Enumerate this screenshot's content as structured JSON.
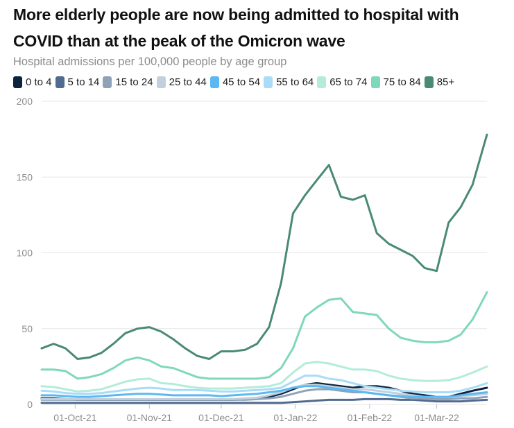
{
  "header": {
    "title": "More elderly people are now being admitted to hospital with\nCOVID than at the peak of the Omicron wave",
    "subtitle": "Hospital admissions per 100,000 people by age group"
  },
  "chart_data": {
    "type": "line",
    "title": "More elderly people are now being admitted to hospital with COVID than at the peak of the Omicron wave",
    "subtitle": "Hospital admissions per 100,000 people by age group",
    "xlabel": "",
    "ylabel": "",
    "ylim": [
      0,
      200
    ],
    "y_ticks": [
      0,
      50,
      100,
      150,
      200
    ],
    "x_range": [
      "2021-09-17",
      "2022-03-22"
    ],
    "x_ticks": [
      {
        "date": "2021-10-01",
        "label": "01-Oct-21"
      },
      {
        "date": "2021-11-01",
        "label": "01-Nov-21"
      },
      {
        "date": "2021-12-01",
        "label": "01-Dec-21"
      },
      {
        "date": "2022-01-01",
        "label": "01-Jan-22"
      },
      {
        "date": "2022-02-01",
        "label": "01-Feb-22"
      },
      {
        "date": "2022-03-01",
        "label": "01-Mar-22"
      }
    ],
    "grid": true,
    "legend_position": "top",
    "x": [
      "2021-09-17",
      "2021-09-22",
      "2021-09-27",
      "2021-10-02",
      "2021-10-07",
      "2021-10-12",
      "2021-10-17",
      "2021-10-22",
      "2021-10-27",
      "2021-11-01",
      "2021-11-06",
      "2021-11-11",
      "2021-11-16",
      "2021-11-21",
      "2021-11-26",
      "2021-12-01",
      "2021-12-06",
      "2021-12-11",
      "2021-12-16",
      "2021-12-21",
      "2021-12-26",
      "2021-12-31",
      "2022-01-05",
      "2022-01-10",
      "2022-01-15",
      "2022-01-20",
      "2022-01-25",
      "2022-01-30",
      "2022-02-04",
      "2022-02-09",
      "2022-02-14",
      "2022-02-19",
      "2022-02-24",
      "2022-03-01",
      "2022-03-06",
      "2022-03-11",
      "2022-03-16",
      "2022-03-22"
    ],
    "series": [
      {
        "name": "0 to 4",
        "color": "#0c2340",
        "values": [
          4,
          4,
          3.5,
          3,
          3,
          3,
          3,
          3,
          3,
          3,
          3,
          3,
          3,
          3,
          3,
          3,
          3,
          3.5,
          4,
          5,
          7,
          10,
          13,
          14,
          13,
          12,
          11,
          12,
          12,
          11,
          9,
          7,
          6,
          5,
          5,
          7,
          9,
          11
        ]
      },
      {
        "name": "5 to 14",
        "color": "#4f6b8f",
        "values": [
          1,
          1,
          1,
          1,
          1,
          1,
          1,
          1,
          1,
          1,
          1,
          1,
          1,
          1,
          1,
          1,
          1,
          1,
          1,
          1,
          1,
          1.5,
          2,
          2.5,
          3,
          3,
          3,
          3.5,
          3.5,
          3.5,
          3,
          3,
          2.5,
          2,
          2,
          2,
          2.5,
          3
        ]
      },
      {
        "name": "15 to 24",
        "color": "#8fa3b8",
        "values": [
          3,
          3,
          3,
          3,
          3,
          3,
          3,
          3,
          3,
          3,
          3,
          3,
          3,
          3,
          3,
          3,
          3,
          3,
          3.5,
          4,
          5,
          7,
          9,
          10,
          10,
          9,
          8,
          8,
          7,
          6,
          5,
          4,
          4,
          3.5,
          3.5,
          4,
          4,
          5
        ]
      },
      {
        "name": "25 to 44",
        "color": "#c3d0dc",
        "values": [
          3.5,
          3.5,
          3.5,
          3.5,
          3.5,
          3.5,
          3.5,
          3.5,
          3.5,
          3.5,
          3.5,
          3.5,
          3.5,
          3.5,
          3.5,
          3.5,
          3.5,
          4,
          4.5,
          6,
          8,
          11,
          13,
          13,
          12,
          11,
          10,
          10,
          9,
          8,
          7,
          6,
          5,
          5,
          5,
          5.5,
          6,
          7
        ]
      },
      {
        "name": "45 to 54",
        "color": "#5cb8f2",
        "values": [
          6,
          6,
          5.5,
          5,
          5,
          5.5,
          6,
          6.5,
          7,
          7,
          6.5,
          6,
          6,
          6,
          6,
          5.5,
          6,
          6.5,
          7,
          8,
          9,
          11,
          12,
          12,
          11,
          10,
          9,
          8,
          7,
          6,
          5.5,
          5,
          5,
          5,
          5,
          6,
          7,
          8
        ]
      },
      {
        "name": "55 to 64",
        "color": "#a9dcf7",
        "values": [
          9,
          8.5,
          7.5,
          7,
          7,
          7.5,
          8.5,
          9.5,
          10.5,
          11,
          10.5,
          9.5,
          9.5,
          9.5,
          9,
          8.5,
          8.5,
          9,
          9.5,
          10,
          11,
          15,
          19,
          19,
          17,
          16,
          14,
          12,
          11,
          10,
          9,
          8.5,
          8,
          8,
          8,
          9,
          11,
          14
        ]
      },
      {
        "name": "65 to 74",
        "color": "#b4ecd9",
        "values": [
          12,
          11.5,
          10,
          8.5,
          9,
          10,
          12.5,
          15,
          16.5,
          17,
          14,
          13.5,
          12,
          11,
          10.5,
          10.5,
          10.5,
          11,
          11.5,
          12,
          14,
          21,
          27,
          28,
          27,
          25,
          23,
          23,
          22,
          19,
          17,
          16,
          15.5,
          15.5,
          16,
          18,
          21,
          25
        ]
      },
      {
        "name": "75 to 84",
        "color": "#7fd8b8",
        "values": [
          23,
          23,
          22,
          17,
          18,
          20,
          24,
          29,
          31,
          29,
          25,
          24,
          21,
          18,
          17,
          17,
          17,
          17,
          17,
          18,
          24,
          37,
          58,
          64,
          69,
          70,
          61,
          60,
          59,
          50,
          44,
          42,
          41,
          41,
          42,
          46,
          56,
          74
        ]
      },
      {
        "name": "85+",
        "color": "#4a8a74",
        "values": [
          37,
          40,
          37,
          30,
          31,
          34,
          40,
          47,
          50,
          51,
          48,
          43,
          37,
          32,
          30,
          35,
          35,
          36,
          40,
          51,
          80,
          126,
          138,
          148,
          158,
          137,
          135,
          138,
          113,
          106,
          102,
          98,
          90,
          88,
          120,
          130,
          145,
          178
        ]
      }
    ]
  }
}
